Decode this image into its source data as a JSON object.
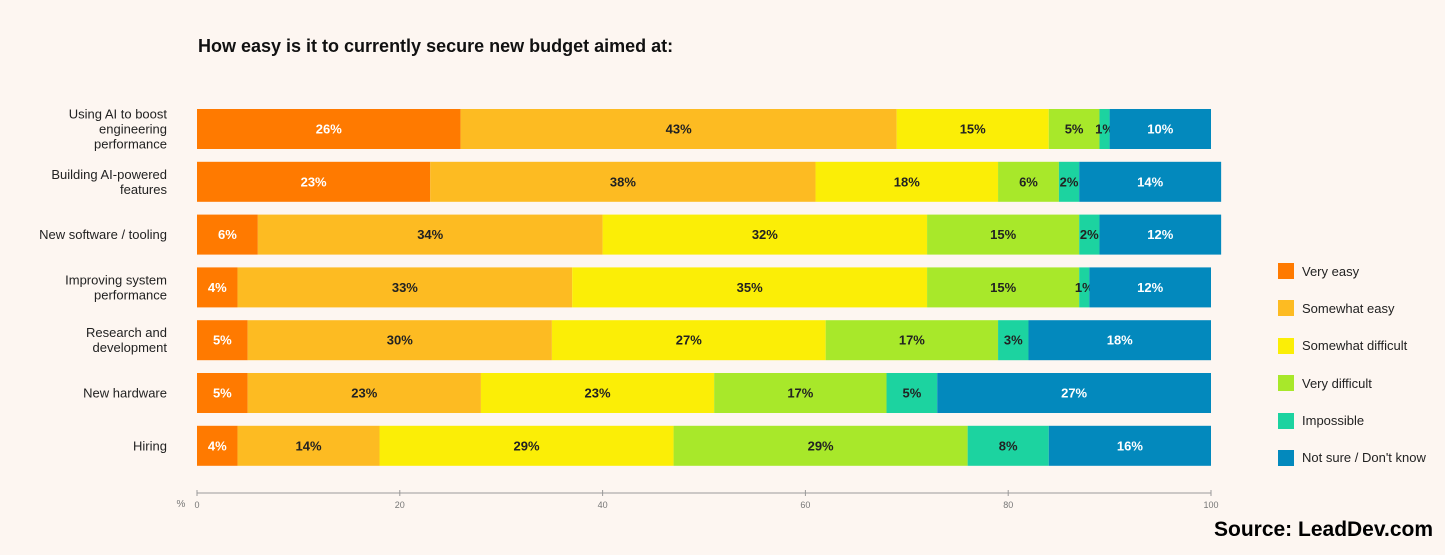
{
  "chart_data": {
    "type": "bar",
    "orientation": "horizontal",
    "stacked": true,
    "title": "How easy is it to currently secure new budget aimed at:",
    "xlabel": "%",
    "xlim": [
      0,
      100
    ],
    "xticks": [
      0,
      20,
      40,
      60,
      80,
      100
    ],
    "categories": [
      "Using AI to boost engineering performance",
      "Building AI-powered features",
      "New software / tooling",
      "Improving system performance",
      "Research and development",
      "New hardware",
      "Hiring"
    ],
    "series": [
      {
        "name": "Very easy",
        "color": "#ff7a00",
        "values": [
          26,
          23,
          6,
          4,
          5,
          5,
          4
        ]
      },
      {
        "name": "Somewhat easy",
        "color": "#fdbb22",
        "values": [
          43,
          38,
          34,
          33,
          30,
          23,
          14
        ]
      },
      {
        "name": "Somewhat difficult",
        "color": "#fbee06",
        "values": [
          15,
          18,
          32,
          35,
          27,
          23,
          29
        ]
      },
      {
        "name": "Very difficult",
        "color": "#a8e82a",
        "values": [
          5,
          6,
          15,
          15,
          17,
          17,
          29
        ]
      },
      {
        "name": "Impossible",
        "color": "#1cd3a0",
        "values": [
          1,
          2,
          2,
          1,
          3,
          5,
          8
        ]
      },
      {
        "name": "Not sure / Don't know",
        "color": "#0389bd",
        "values": [
          10,
          14,
          12,
          12,
          18,
          27,
          16
        ]
      }
    ],
    "legend_position": "right",
    "grid": false
  },
  "source": "Source: LeadDev.com"
}
